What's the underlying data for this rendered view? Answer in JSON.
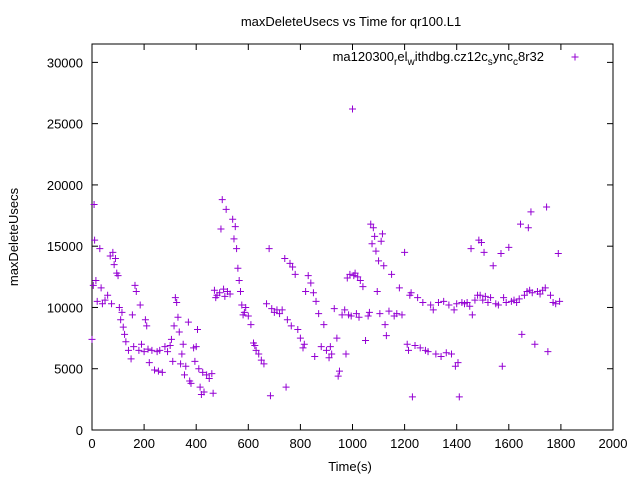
{
  "chart_data": {
    "type": "scatter",
    "title": "maxDeleteUsecs vs Time for qr100.L1",
    "xlabel": "Time(s)",
    "ylabel": "maxDeleteUsecs",
    "xlim": [
      0,
      2000
    ],
    "ylim": [
      0,
      31500
    ],
    "xticks": [
      0,
      200,
      400,
      600,
      800,
      1000,
      1200,
      1400,
      1600,
      1800,
      2000
    ],
    "yticks": [
      0,
      5000,
      10000,
      15000,
      20000,
      25000,
      30000
    ],
    "grid": false,
    "legend_position": "top-right",
    "series": [
      {
        "name": "ma120300_rel_withdbg.cz12c_sync_c8r32",
        "legend_label": {
          "p1": "ma120300",
          "s1": "r",
          "p2": "el",
          "s2": "w",
          "p3": "ithdbg.cz12c",
          "s3": "s",
          "p4": "ync",
          "s4": "c",
          "p5": "8r32"
        },
        "color": "#9400d3",
        "marker": "+",
        "points": [
          [
            0,
            7400
          ],
          [
            5,
            11800
          ],
          [
            8,
            18400
          ],
          [
            10,
            15500
          ],
          [
            15,
            12200
          ],
          [
            20,
            10500
          ],
          [
            30,
            14800
          ],
          [
            35,
            11600
          ],
          [
            40,
            10300
          ],
          [
            50,
            10600
          ],
          [
            60,
            11000
          ],
          [
            70,
            14200
          ],
          [
            75,
            10300
          ],
          [
            80,
            14500
          ],
          [
            85,
            13500
          ],
          [
            90,
            14000
          ],
          [
            95,
            12800
          ],
          [
            100,
            12600
          ],
          [
            105,
            10000
          ],
          [
            110,
            9000
          ],
          [
            115,
            9600
          ],
          [
            120,
            8400
          ],
          [
            125,
            7800
          ],
          [
            130,
            7200
          ],
          [
            140,
            6500
          ],
          [
            150,
            5800
          ],
          [
            155,
            9400
          ],
          [
            160,
            6800
          ],
          [
            165,
            11800
          ],
          [
            170,
            11300
          ],
          [
            180,
            6500
          ],
          [
            185,
            10200
          ],
          [
            190,
            7000
          ],
          [
            200,
            6400
          ],
          [
            205,
            9000
          ],
          [
            210,
            8500
          ],
          [
            215,
            6600
          ],
          [
            220,
            5500
          ],
          [
            230,
            6500
          ],
          [
            240,
            4900
          ],
          [
            250,
            6400
          ],
          [
            255,
            4800
          ],
          [
            260,
            6500
          ],
          [
            270,
            4700
          ],
          [
            280,
            6800
          ],
          [
            290,
            6400
          ],
          [
            300,
            6900
          ],
          [
            305,
            7400
          ],
          [
            310,
            5600
          ],
          [
            315,
            8500
          ],
          [
            320,
            10800
          ],
          [
            325,
            10400
          ],
          [
            330,
            9200
          ],
          [
            335,
            8000
          ],
          [
            340,
            5400
          ],
          [
            345,
            6200
          ],
          [
            350,
            7000
          ],
          [
            355,
            4500
          ],
          [
            360,
            5200
          ],
          [
            370,
            8800
          ],
          [
            375,
            4000
          ],
          [
            380,
            3800
          ],
          [
            390,
            6700
          ],
          [
            395,
            5600
          ],
          [
            400,
            6800
          ],
          [
            405,
            8200
          ],
          [
            410,
            5000
          ],
          [
            415,
            3500
          ],
          [
            420,
            2900
          ],
          [
            425,
            4700
          ],
          [
            430,
            3100
          ],
          [
            440,
            4500
          ],
          [
            450,
            4200
          ],
          [
            460,
            4600
          ],
          [
            465,
            3000
          ],
          [
            470,
            11400
          ],
          [
            475,
            10800
          ],
          [
            480,
            11000
          ],
          [
            490,
            11200
          ],
          [
            495,
            16400
          ],
          [
            500,
            18800
          ],
          [
            505,
            11500
          ],
          [
            510,
            10900
          ],
          [
            515,
            18000
          ],
          [
            520,
            11300
          ],
          [
            530,
            11100
          ],
          [
            540,
            17200
          ],
          [
            545,
            15600
          ],
          [
            550,
            16600
          ],
          [
            555,
            14800
          ],
          [
            560,
            13200
          ],
          [
            565,
            12200
          ],
          [
            570,
            11300
          ],
          [
            575,
            10200
          ],
          [
            580,
            9400
          ],
          [
            585,
            9600
          ],
          [
            590,
            10000
          ],
          [
            600,
            9300
          ],
          [
            610,
            8600
          ],
          [
            620,
            7100
          ],
          [
            625,
            6900
          ],
          [
            630,
            6500
          ],
          [
            640,
            6200
          ],
          [
            650,
            5700
          ],
          [
            660,
            5400
          ],
          [
            670,
            10300
          ],
          [
            680,
            14800
          ],
          [
            685,
            2800
          ],
          [
            690,
            9900
          ],
          [
            700,
            9600
          ],
          [
            710,
            9800
          ],
          [
            720,
            9500
          ],
          [
            730,
            9800
          ],
          [
            740,
            14000
          ],
          [
            745,
            3500
          ],
          [
            750,
            9000
          ],
          [
            760,
            13600
          ],
          [
            765,
            8500
          ],
          [
            770,
            13300
          ],
          [
            780,
            12700
          ],
          [
            790,
            8200
          ],
          [
            800,
            7500
          ],
          [
            810,
            6700
          ],
          [
            815,
            7000
          ],
          [
            820,
            11300
          ],
          [
            830,
            12600
          ],
          [
            840,
            12000
          ],
          [
            850,
            11200
          ],
          [
            855,
            6000
          ],
          [
            860,
            10500
          ],
          [
            870,
            9500
          ],
          [
            880,
            6800
          ],
          [
            890,
            8600
          ],
          [
            900,
            6500
          ],
          [
            910,
            5900
          ],
          [
            915,
            6800
          ],
          [
            920,
            6200
          ],
          [
            930,
            9900
          ],
          [
            940,
            7500
          ],
          [
            945,
            4400
          ],
          [
            950,
            4800
          ],
          [
            960,
            9400
          ],
          [
            970,
            9800
          ],
          [
            975,
            6200
          ],
          [
            980,
            12400
          ],
          [
            985,
            9400
          ],
          [
            990,
            12700
          ],
          [
            995,
            9300
          ],
          [
            1000,
            26200
          ],
          [
            1005,
            12600
          ],
          [
            1010,
            12800
          ],
          [
            1015,
            9500
          ],
          [
            1020,
            12500
          ],
          [
            1025,
            9200
          ],
          [
            1030,
            12200
          ],
          [
            1040,
            11700
          ],
          [
            1050,
            7300
          ],
          [
            1060,
            9300
          ],
          [
            1065,
            9600
          ],
          [
            1070,
            16800
          ],
          [
            1075,
            15200
          ],
          [
            1080,
            16500
          ],
          [
            1085,
            15800
          ],
          [
            1090,
            14600
          ],
          [
            1095,
            11300
          ],
          [
            1100,
            13800
          ],
          [
            1105,
            9500
          ],
          [
            1110,
            15400
          ],
          [
            1115,
            16000
          ],
          [
            1120,
            13400
          ],
          [
            1125,
            8600
          ],
          [
            1130,
            7700
          ],
          [
            1140,
            9700
          ],
          [
            1150,
            12700
          ],
          [
            1160,
            9300
          ],
          [
            1170,
            9500
          ],
          [
            1180,
            11600
          ],
          [
            1190,
            9400
          ],
          [
            1200,
            14500
          ],
          [
            1210,
            7000
          ],
          [
            1215,
            6500
          ],
          [
            1220,
            11000
          ],
          [
            1225,
            11200
          ],
          [
            1230,
            2700
          ],
          [
            1240,
            6900
          ],
          [
            1250,
            10800
          ],
          [
            1260,
            6700
          ],
          [
            1270,
            10400
          ],
          [
            1280,
            6500
          ],
          [
            1290,
            6400
          ],
          [
            1300,
            10200
          ],
          [
            1310,
            9800
          ],
          [
            1320,
            6200
          ],
          [
            1330,
            10400
          ],
          [
            1340,
            6000
          ],
          [
            1350,
            10500
          ],
          [
            1360,
            6300
          ],
          [
            1370,
            10200
          ],
          [
            1380,
            6200
          ],
          [
            1390,
            9800
          ],
          [
            1395,
            5200
          ],
          [
            1400,
            10300
          ],
          [
            1405,
            5500
          ],
          [
            1410,
            2700
          ],
          [
            1420,
            10400
          ],
          [
            1430,
            10300
          ],
          [
            1440,
            10400
          ],
          [
            1450,
            10100
          ],
          [
            1455,
            14800
          ],
          [
            1460,
            9400
          ],
          [
            1470,
            10600
          ],
          [
            1480,
            11000
          ],
          [
            1485,
            15500
          ],
          [
            1490,
            11000
          ],
          [
            1495,
            15300
          ],
          [
            1500,
            10600
          ],
          [
            1505,
            14500
          ],
          [
            1510,
            10900
          ],
          [
            1520,
            10400
          ],
          [
            1530,
            10800
          ],
          [
            1540,
            13400
          ],
          [
            1550,
            10300
          ],
          [
            1560,
            10200
          ],
          [
            1570,
            14400
          ],
          [
            1575,
            5200
          ],
          [
            1580,
            10800
          ],
          [
            1590,
            10400
          ],
          [
            1600,
            14900
          ],
          [
            1610,
            10500
          ],
          [
            1620,
            10600
          ],
          [
            1630,
            10400
          ],
          [
            1640,
            10700
          ],
          [
            1645,
            16800
          ],
          [
            1650,
            7800
          ],
          [
            1660,
            11000
          ],
          [
            1670,
            11300
          ],
          [
            1675,
            16500
          ],
          [
            1680,
            11400
          ],
          [
            1685,
            17800
          ],
          [
            1690,
            11200
          ],
          [
            1700,
            7000
          ],
          [
            1710,
            11300
          ],
          [
            1720,
            11100
          ],
          [
            1730,
            11400
          ],
          [
            1740,
            11600
          ],
          [
            1745,
            18200
          ],
          [
            1750,
            6400
          ],
          [
            1760,
            11000
          ],
          [
            1770,
            10400
          ],
          [
            1780,
            10300
          ],
          [
            1790,
            14400
          ],
          [
            1795,
            10500
          ]
        ]
      }
    ]
  }
}
